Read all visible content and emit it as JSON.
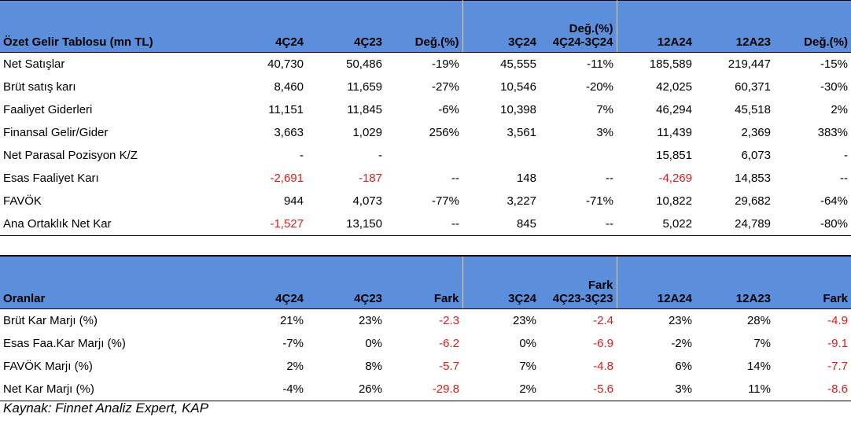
{
  "income": {
    "headers": [
      "Özet Gelir Tablosu (mn TL)",
      "4Ç24",
      "4Ç23",
      "Değ.(%)",
      "3Ç24",
      "Değ.(%)",
      "4Ç24-3Ç24",
      "12A24",
      "12A23",
      "Değ.(%)"
    ],
    "rows": [
      {
        "label": "Net Satışlar",
        "cells": [
          "40,730",
          "50,486",
          "-19%",
          "45,555",
          "-11%",
          "185,589",
          "219,447",
          "-15%"
        ]
      },
      {
        "label": "Brüt satış karı",
        "cells": [
          "8,460",
          "11,659",
          "-27%",
          "10,546",
          "-20%",
          "42,025",
          "60,371",
          "-30%"
        ]
      },
      {
        "label": "Faaliyet Giderleri",
        "cells": [
          "11,151",
          "11,845",
          "-6%",
          "10,398",
          "7%",
          "46,294",
          "45,518",
          "2%"
        ]
      },
      {
        "label": "Finansal Gelir/Gider",
        "cells": [
          "3,663",
          "1,029",
          "256%",
          "3,561",
          "3%",
          "11,439",
          "2,369",
          "383%"
        ]
      },
      {
        "label": "Net Parasal Pozisyon K/Z",
        "cells": [
          "-",
          "-",
          "",
          "",
          "",
          "15,851",
          "6,073",
          "-"
        ]
      },
      {
        "label": "Esas Faaliyet Karı",
        "cells": [
          "-2,691",
          "-187",
          "--",
          "148",
          "--",
          "-4,269",
          "14,853",
          "--"
        ]
      },
      {
        "label": "FAVÖK",
        "cells": [
          "944",
          "4,073",
          "-77%",
          "3,227",
          "-71%",
          "10,822",
          "29,682",
          "-64%"
        ]
      },
      {
        "label": "Ana Ortaklık Net Kar",
        "cells": [
          "-1,527",
          "13,150",
          "--",
          "845",
          "--",
          "5,022",
          "24,789",
          "-80%"
        ]
      }
    ]
  },
  "ratios": {
    "headers": [
      "Oranlar",
      "4Ç24",
      "4Ç23",
      "Fark",
      "3Ç24",
      "Fark",
      "4Ç23-3Ç23",
      "12A24",
      "12A23",
      "Fark"
    ],
    "rows": [
      {
        "label": "Brüt Kar Marjı (%)",
        "cells": [
          "21%",
          "23%",
          "-2.3",
          "23%",
          "-2.4",
          "23%",
          "28%",
          "-4.9"
        ]
      },
      {
        "label": "Esas Faa.Kar Marjı (%)",
        "cells": [
          "-7%",
          "0%",
          "-6.2",
          "0%",
          "-6.9",
          "-2%",
          "7%",
          "-9.1"
        ]
      },
      {
        "label": "FAVÖK Marjı (%)",
        "cells": [
          "2%",
          "8%",
          "-5.7",
          "7%",
          "-4.8",
          "6%",
          "14%",
          "-7.7"
        ]
      },
      {
        "label": "Net Kar Marjı (%)",
        "cells": [
          "-4%",
          "26%",
          "-29.8",
          "2%",
          "-5.6",
          "3%",
          "11%",
          "-8.6"
        ]
      }
    ]
  },
  "source": "Kaynak: Finnet Analiz Expert, KAP",
  "colors": {
    "header_bg": "#5b8fdc",
    "negative": "#e41a1a"
  }
}
